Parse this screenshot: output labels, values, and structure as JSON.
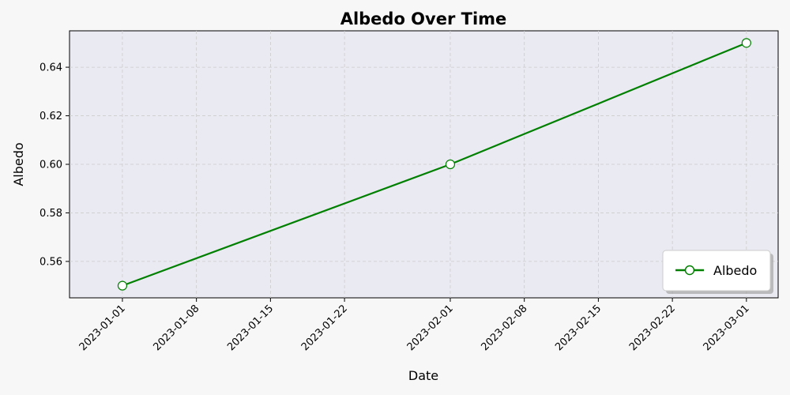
{
  "chart_data": {
    "type": "line",
    "title": "Albedo Over Time",
    "xlabel": "Date",
    "ylabel": "Albedo",
    "x_type": "date",
    "xlim": [
      "2022-12-27",
      "2023-03-04"
    ],
    "ylim": [
      0.545,
      0.655
    ],
    "x_ticks": [
      "2023-01-01",
      "2023-01-08",
      "2023-01-15",
      "2023-01-22",
      "2023-02-01",
      "2023-02-08",
      "2023-02-15",
      "2023-02-22",
      "2023-03-01"
    ],
    "y_ticks": [
      "0.56",
      "0.58",
      "0.60",
      "0.62",
      "0.64"
    ],
    "grid": true,
    "legend_position": "lower-right",
    "colors": {
      "plot_background": "#eaeaf2",
      "line": "#008000",
      "marker_fill": "#ffffff",
      "grid": "#cccccc"
    },
    "series": [
      {
        "name": "Albedo",
        "x": [
          "2023-01-01",
          "2023-02-01",
          "2023-03-01"
        ],
        "y": [
          0.55,
          0.6,
          0.65
        ]
      }
    ]
  }
}
